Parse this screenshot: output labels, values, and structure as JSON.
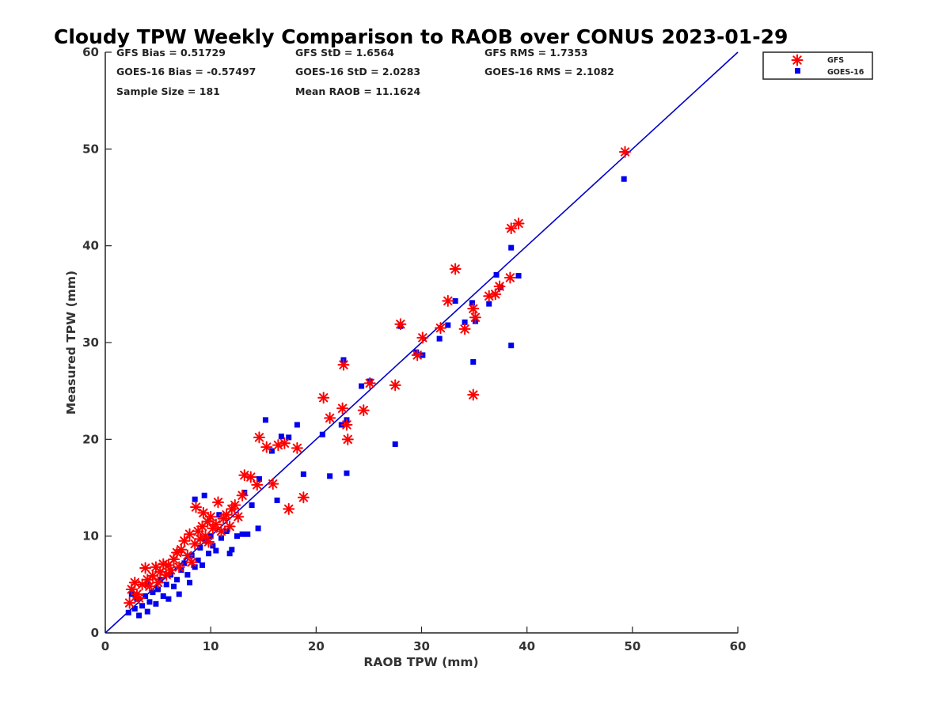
{
  "chart_data": {
    "type": "scatter",
    "title": "Cloudy TPW Weekly Comparison to RAOB over CONUS 2023-01-29",
    "xlabel": "RAOB TPW (mm)",
    "ylabel": "Measured TPW (mm)",
    "xlim": [
      0,
      60
    ],
    "ylim": [
      0,
      60
    ],
    "xticks": [
      0,
      10,
      20,
      30,
      40,
      50,
      60
    ],
    "yticks": [
      0,
      10,
      20,
      30,
      40,
      50,
      60
    ],
    "grid": false,
    "legend_position": "outside-top-right",
    "stats": {
      "gfs_bias": "GFS Bias = 0.51729",
      "gfs_std": "GFS StD = 1.6564",
      "gfs_rms": "GFS RMS = 1.7353",
      "goes_bias": "GOES-16 Bias = -0.57497",
      "goes_std": "GOES-16 StD = 2.0283",
      "goes_rms": "GOES-16 RMS = 2.1082",
      "sample_size": "Sample Size = 181",
      "mean_raob": "Mean RAOB = 11.1624"
    },
    "reference_line": {
      "x": [
        0,
        60
      ],
      "y": [
        0,
        60
      ],
      "color": "#0000cc"
    },
    "series": [
      {
        "name": "GFS",
        "marker": "asterisk",
        "color": "#ff0000",
        "points": [
          [
            2.3,
            3.1
          ],
          [
            2.5,
            4.5
          ],
          [
            2.8,
            5.2
          ],
          [
            3.0,
            4.0
          ],
          [
            3.2,
            3.6
          ],
          [
            3.5,
            5.0
          ],
          [
            3.8,
            6.7
          ],
          [
            4.0,
            5.5
          ],
          [
            4.2,
            4.8
          ],
          [
            4.5,
            5.9
          ],
          [
            4.8,
            6.8
          ],
          [
            5.0,
            5.2
          ],
          [
            5.2,
            6.3
          ],
          [
            5.5,
            7.1
          ],
          [
            5.8,
            6.0
          ],
          [
            6.0,
            7.0
          ],
          [
            6.2,
            6.5
          ],
          [
            6.5,
            7.6
          ],
          [
            6.8,
            8.3
          ],
          [
            7.0,
            6.8
          ],
          [
            7.2,
            8.6
          ],
          [
            7.5,
            9.5
          ],
          [
            7.8,
            8.0
          ],
          [
            8.0,
            10.2
          ],
          [
            8.2,
            7.3
          ],
          [
            8.5,
            9.2
          ],
          [
            8.6,
            13.0
          ],
          [
            8.8,
            10.5
          ],
          [
            9.0,
            9.7
          ],
          [
            9.2,
            11.0
          ],
          [
            9.3,
            12.4
          ],
          [
            9.5,
            10.0
          ],
          [
            9.7,
            11.5
          ],
          [
            9.8,
            9.4
          ],
          [
            10.0,
            12.0
          ],
          [
            10.2,
            10.8
          ],
          [
            10.5,
            11.2
          ],
          [
            10.7,
            13.5
          ],
          [
            11.0,
            10.5
          ],
          [
            11.2,
            11.8
          ],
          [
            11.5,
            12.2
          ],
          [
            11.8,
            11.0
          ],
          [
            12.0,
            12.8
          ],
          [
            12.3,
            13.2
          ],
          [
            12.6,
            12.0
          ],
          [
            13.0,
            14.2
          ],
          [
            13.2,
            16.3
          ],
          [
            13.8,
            16.1
          ],
          [
            14.4,
            15.3
          ],
          [
            14.6,
            20.2
          ],
          [
            15.3,
            19.2
          ],
          [
            15.9,
            15.4
          ],
          [
            16.4,
            19.4
          ],
          [
            17.0,
            19.6
          ],
          [
            17.4,
            12.8
          ],
          [
            18.2,
            19.1
          ],
          [
            18.8,
            14.0
          ],
          [
            20.7,
            24.3
          ],
          [
            21.3,
            22.2
          ],
          [
            22.5,
            23.2
          ],
          [
            22.6,
            27.7
          ],
          [
            22.9,
            21.5
          ],
          [
            23.0,
            20.0
          ],
          [
            24.5,
            23.0
          ],
          [
            25.1,
            25.8
          ],
          [
            27.5,
            25.6
          ],
          [
            28.0,
            31.9
          ],
          [
            29.6,
            28.7
          ],
          [
            30.1,
            30.5
          ],
          [
            31.8,
            31.5
          ],
          [
            32.5,
            34.3
          ],
          [
            33.2,
            37.6
          ],
          [
            34.1,
            31.4
          ],
          [
            34.9,
            33.5
          ],
          [
            34.9,
            24.6
          ],
          [
            35.1,
            32.6
          ],
          [
            36.4,
            34.8
          ],
          [
            37.0,
            35.0
          ],
          [
            37.4,
            35.8
          ],
          [
            38.4,
            36.7
          ],
          [
            38.5,
            41.8
          ],
          [
            39.2,
            42.3
          ],
          [
            49.3,
            49.7
          ]
        ]
      },
      {
        "name": "GOES-16",
        "marker": "square",
        "color": "#0000ee",
        "points": [
          [
            2.2,
            2.1
          ],
          [
            2.5,
            4.0
          ],
          [
            2.8,
            2.5
          ],
          [
            3.0,
            3.5
          ],
          [
            3.2,
            1.8
          ],
          [
            3.5,
            2.8
          ],
          [
            3.8,
            3.8
          ],
          [
            4.0,
            2.2
          ],
          [
            4.0,
            5.0
          ],
          [
            4.2,
            3.2
          ],
          [
            4.5,
            4.2
          ],
          [
            4.8,
            3.0
          ],
          [
            5.0,
            4.5
          ],
          [
            5.2,
            5.5
          ],
          [
            5.5,
            3.8
          ],
          [
            5.8,
            5.0
          ],
          [
            6.0,
            3.5
          ],
          [
            6.2,
            6.0
          ],
          [
            6.5,
            4.8
          ],
          [
            6.8,
            5.5
          ],
          [
            7.0,
            4.0
          ],
          [
            7.2,
            6.5
          ],
          [
            7.5,
            7.2
          ],
          [
            7.8,
            6.0
          ],
          [
            8.0,
            5.2
          ],
          [
            8.2,
            8.0
          ],
          [
            8.5,
            6.8
          ],
          [
            8.5,
            13.8
          ],
          [
            8.8,
            7.5
          ],
          [
            9.0,
            8.8
          ],
          [
            9.2,
            7.0
          ],
          [
            9.4,
            14.2
          ],
          [
            9.5,
            9.5
          ],
          [
            9.8,
            8.2
          ],
          [
            10.0,
            10.0
          ],
          [
            10.2,
            9.0
          ],
          [
            10.5,
            8.5
          ],
          [
            10.8,
            12.2
          ],
          [
            11.0,
            9.8
          ],
          [
            11.5,
            10.5
          ],
          [
            11.8,
            8.2
          ],
          [
            12.0,
            8.6
          ],
          [
            12.5,
            10.0
          ],
          [
            13.0,
            10.2
          ],
          [
            13.2,
            14.5
          ],
          [
            13.5,
            10.2
          ],
          [
            13.9,
            13.2
          ],
          [
            14.5,
            10.8
          ],
          [
            14.6,
            15.9
          ],
          [
            15.2,
            22.0
          ],
          [
            15.8,
            18.8
          ],
          [
            16.3,
            13.7
          ],
          [
            16.7,
            20.3
          ],
          [
            17.4,
            20.2
          ],
          [
            18.2,
            21.5
          ],
          [
            18.8,
            16.4
          ],
          [
            20.6,
            20.5
          ],
          [
            21.3,
            16.2
          ],
          [
            22.4,
            21.5
          ],
          [
            22.6,
            28.2
          ],
          [
            22.9,
            22.0
          ],
          [
            22.9,
            16.5
          ],
          [
            24.3,
            25.5
          ],
          [
            25.1,
            26.0
          ],
          [
            27.5,
            19.5
          ],
          [
            28.0,
            31.7
          ],
          [
            29.5,
            29.0
          ],
          [
            30.1,
            28.7
          ],
          [
            31.7,
            30.4
          ],
          [
            32.5,
            31.8
          ],
          [
            33.2,
            34.3
          ],
          [
            34.1,
            32.1
          ],
          [
            34.8,
            34.1
          ],
          [
            34.9,
            28.0
          ],
          [
            35.1,
            32.2
          ],
          [
            36.4,
            34.0
          ],
          [
            37.1,
            37.0
          ],
          [
            37.5,
            35.7
          ],
          [
            38.5,
            39.8
          ],
          [
            38.5,
            29.7
          ],
          [
            39.2,
            36.9
          ],
          [
            49.2,
            46.9
          ]
        ]
      }
    ]
  }
}
